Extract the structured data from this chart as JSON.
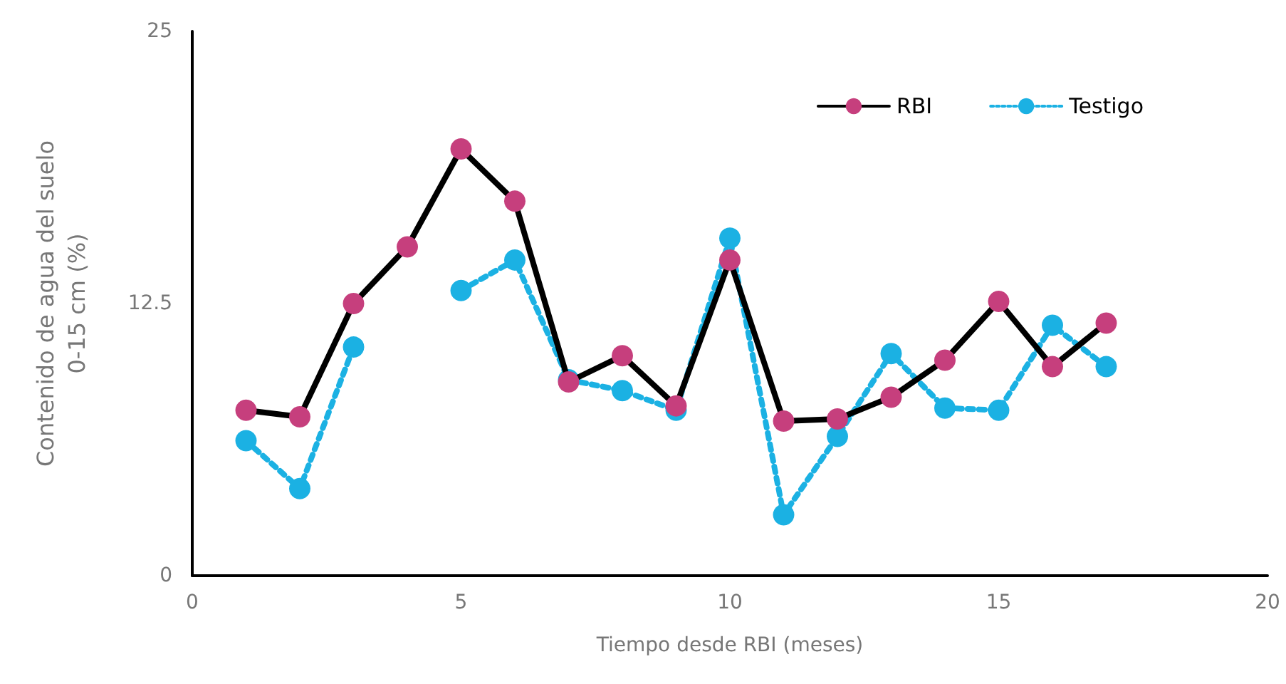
{
  "chart_data": {
    "type": "line",
    "xlabel": "Tiempo desde RBI (meses)",
    "ylabel": "Contenido de agua del suelo\n0-15 cm (%)",
    "x": [
      1,
      2,
      3,
      4,
      5,
      6,
      7,
      8,
      9,
      10,
      11,
      12,
      13,
      14,
      15,
      16,
      17
    ],
    "series": [
      {
        "name": "RBI",
        "color": "#c63f7d",
        "line_style": "solid",
        "values": [
          7.6,
          7.3,
          12.5,
          15.1,
          19.6,
          17.2,
          8.9,
          10.1,
          7.8,
          14.5,
          7.1,
          7.2,
          8.2,
          9.9,
          12.6,
          9.6,
          11.6
        ]
      },
      {
        "name": "Testigo",
        "color": "#1bb1e3",
        "line_style": "dotted",
        "values": [
          6.2,
          4.0,
          10.5,
          null,
          13.1,
          14.5,
          9.0,
          8.5,
          7.6,
          15.5,
          2.8,
          6.4,
          10.2,
          7.7,
          7.6,
          11.5,
          9.6
        ]
      }
    ],
    "xlim": [
      0,
      20
    ],
    "xticks": [
      0,
      5,
      10,
      15,
      20
    ],
    "ylim": [
      0,
      25
    ],
    "yticks": [
      0,
      12.5,
      25
    ],
    "grid": false,
    "legend": "top right",
    "marker": "circle"
  }
}
